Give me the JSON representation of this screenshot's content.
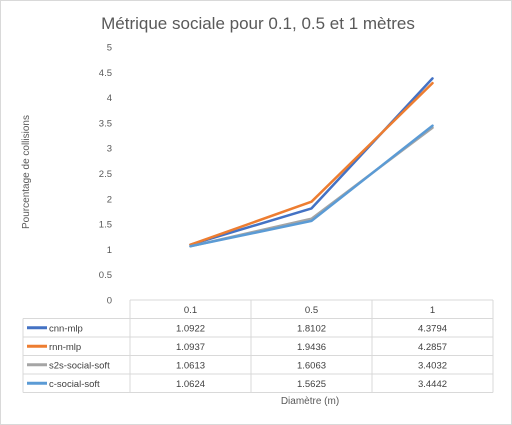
{
  "chart_data": {
    "type": "line",
    "title": "Métrique sociale pour 0.1, 0.5 et 1 mètres",
    "xlabel": "Diamètre (m)",
    "ylabel": "Pourcentage de collisions",
    "categories": [
      "0.1",
      "0.5",
      "1"
    ],
    "ylim": [
      0,
      5
    ],
    "yticks": [
      "0",
      "0.5",
      "1",
      "1.5",
      "2",
      "2.5",
      "3",
      "3.5",
      "4",
      "4.5",
      "5"
    ],
    "grid": false,
    "legend": "data-table",
    "series": [
      {
        "name": "cnn-mlp",
        "color": "#4472c4",
        "values": [
          1.0922,
          1.8102,
          4.3794
        ],
        "labels": [
          "1.0922",
          "1.8102",
          "4.3794"
        ]
      },
      {
        "name": "rnn-mlp",
        "color": "#ed7d31",
        "values": [
          1.0937,
          1.9436,
          4.2857
        ],
        "labels": [
          "1.0937",
          "1.9436",
          "4.2857"
        ]
      },
      {
        "name": "s2s-social-soft",
        "color": "#a5a5a5",
        "values": [
          1.0613,
          1.6063,
          3.4032
        ],
        "labels": [
          "1.0613",
          "1.6063",
          "3.4032"
        ]
      },
      {
        "name": "c-social-soft",
        "color": "#5b9bd5",
        "values": [
          1.0624,
          1.5625,
          3.4442
        ],
        "labels": [
          "1.0624",
          "1.5625",
          "3.4442"
        ]
      }
    ]
  }
}
